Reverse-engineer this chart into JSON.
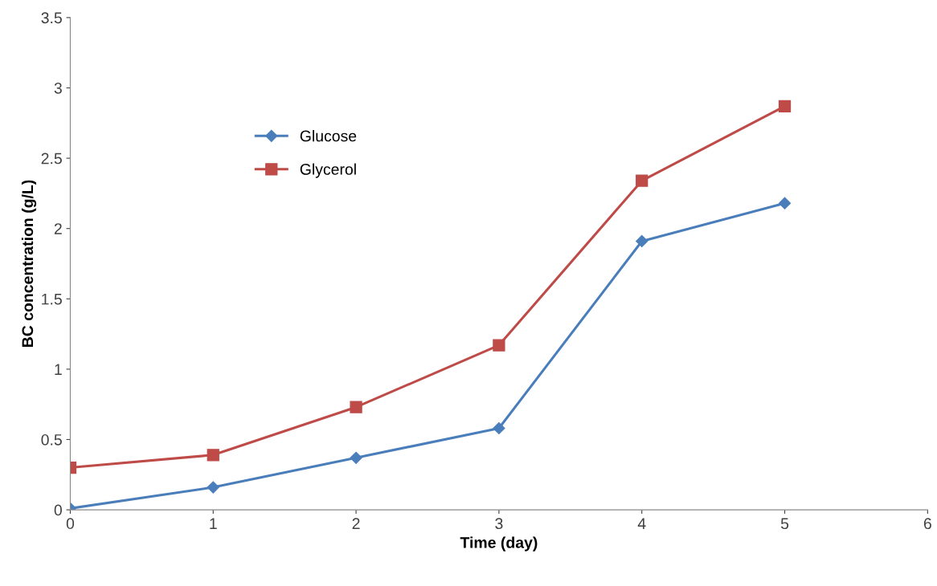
{
  "chart_data": {
    "type": "line",
    "xlabel": "Time (day)",
    "ylabel": "BC concentration (g/L)",
    "x": [
      0,
      1,
      2,
      3,
      4,
      5
    ],
    "series": [
      {
        "name": "Glucose",
        "color": "#4a7ebb",
        "marker": "diamond",
        "values": [
          0.01,
          0.16,
          0.37,
          0.58,
          1.91,
          2.18
        ]
      },
      {
        "name": "Glycerol",
        "color": "#be4b48",
        "marker": "square",
        "values": [
          0.3,
          0.39,
          0.73,
          1.17,
          2.34,
          2.87
        ]
      }
    ],
    "xlim": [
      0,
      6
    ],
    "xticks": [
      0,
      1,
      2,
      3,
      4,
      5,
      6
    ],
    "ylim": [
      0,
      3.5
    ],
    "yticks": [
      0,
      0.5,
      1,
      1.5,
      2,
      2.5,
      3,
      3.5
    ],
    "grid": false,
    "legend": "top left",
    "line_style": "solid"
  }
}
